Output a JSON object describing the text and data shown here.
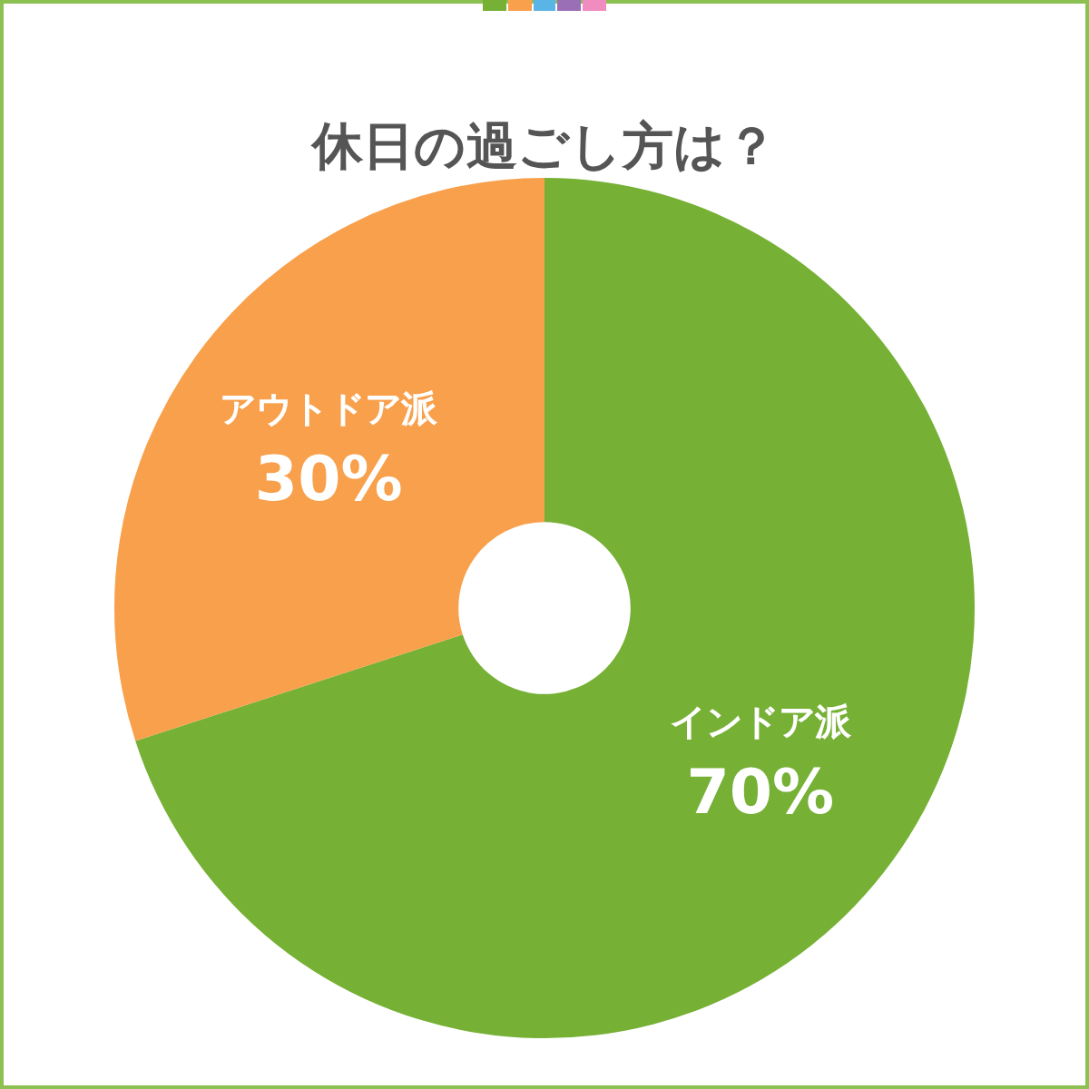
{
  "chart_data": {
    "type": "donut",
    "title": "休日の過ごし方は？",
    "categories": [
      "インドア派",
      "アウトドア派"
    ],
    "values": [
      70,
      30
    ],
    "colors": [
      "#76b035",
      "#f8a04b"
    ],
    "value_labels": [
      "70%",
      "30%"
    ],
    "legend": false
  }
}
